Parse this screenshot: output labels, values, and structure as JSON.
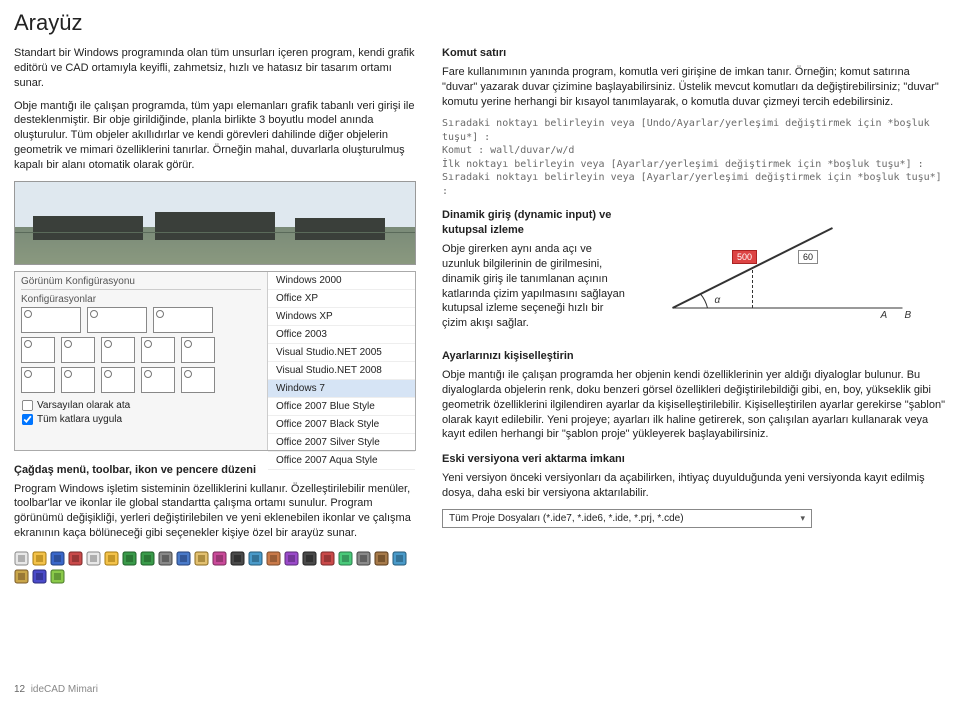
{
  "title": "Arayüz",
  "intro1": "Standart bir Windows programında olan tüm unsurları içeren program, kendi grafik editörü ve CAD ortamıyla keyifli, zahmetsiz, hızlı ve hatasız bir tasarım ortamı sunar.",
  "intro2": "Obje mantığı ile çalışan programda, tüm yapı elemanları grafik tabanlı veri girişi ile desteklenmiştir. Bir obje girildiğinde, planla birlikte 3 boyutlu model anında oluşturulur. Tüm objeler akıllıdırlar ve kendi görevleri dahilinde diğer objelerin geometrik ve mimari özelliklerini tanırlar. Örneğin mahal, duvarlarla oluşturulmuş kapalı bir alanı otomatik olarak görür.",
  "theme": {
    "header_left": "Görünüm Konfigürasyonu",
    "konf_label": "Konfigürasyonlar",
    "opt1": "Varsayılan olarak ata",
    "opt2": "Tüm katlara uygula",
    "opt2_checked": true,
    "items": [
      "Windows 2000",
      "Office XP",
      "Windows XP",
      "Office 2003",
      "Visual Studio.NET 2005",
      "Visual Studio.NET 2008",
      "Windows 7",
      "Office 2007 Blue Style",
      "Office 2007 Black Style",
      "Office 2007 Silver Style",
      "Office 2007 Aqua Style"
    ],
    "selected_index": 6
  },
  "menu_head": "Çağdaş menü, toolbar, ikon ve pencere düzeni",
  "menu_body": "Program Windows işletim sisteminin özelliklerini kullanır. Özelleştirilebilir menüler, toolbar'lar ve ikonlar ile global standartta çalışma ortamı sunulur. Program görünümü değişikliği, yerleri değiştirilebilen ve yeni eklenebilen ikonlar ve çalışma ekranının kaça bölüneceği gibi seçenekler kişiye özel bir arayüz sunar.",
  "komut_head": "Komut satırı",
  "komut_body": "Fare kullanımının yanında program, komutla veri girişine de imkan tanır. Örneğin; komut satırına \"duvar\" yazarak duvar çizimine başlayabilirsiniz. Üstelik mevcut komutları da değiştirebilirsiniz; \"duvar\" komutu yerine herhangi bir kısayol tanımlayarak, o komutla duvar çizmeyi tercih edebilirsiniz.",
  "code_lines": [
    "Sıradaki noktayı belirleyin veya [Undo/Ayarlar/yerleşimi değiştirmek için *boşluk tuşu*] :",
    "Komut : wall/duvar/w/d",
    "İlk noktayı belirleyin veya [Ayarlar/yerleşimi değiştirmek için *boşluk tuşu*] :",
    "Sıradaki noktayı belirleyin veya [Ayarlar/yerleşimi değiştirmek için *boşluk tuşu*] :"
  ],
  "dyn_head": "Dinamik giriş (dynamic input) ve kutupsal izleme",
  "dyn_body": "Obje girerken aynı anda açı ve uzunluk bilgilerinin de girilmesini, dinamik giriş ile tanımlanan açının katlarında çizim yapılmasını sağlayan kutupsal izleme seçeneği hızlı bir çizim akışı sağlar.",
  "dyn_fig": {
    "val_a": "500",
    "val_b": "60",
    "lbl_a": "A",
    "lbl_b": "B",
    "ang": "α",
    "line_color": "#333333",
    "accent": "#d04040"
  },
  "ayar_head": "Ayarlarınızı kişiselleştirin",
  "ayar_body": "Obje mantığı ile çalışan programda her objenin kendi özelliklerinin yer aldığı diyaloglar bulunur. Bu diyaloglarda objelerin renk, doku benzeri görsel özellikleri değiştirilebildiği gibi, en, boy, yükseklik gibi geometrik özelliklerini ilgilendiren ayarlar da kişiselleştirilebilir. Kişiselleştirilen ayarlar gerekirse \"şablon\" olarak kayıt edilebilir. Yeni projeye; ayarları ilk haline getirerek, son çalışılan ayarları kullanarak veya kayıt edilen herhangi bir \"şablon proje\" yükleyerek başlayabilirsiniz.",
  "eski_head": "Eski versiyona veri aktarma imkanı",
  "eski_body": "Yeni versiyon önceki versiyonları da açabilirken, ihtiyaç duyulduğunda  yeni versiyonda kayıt edilmiş dosya, daha eski bir versiyona aktarılabilir.",
  "filetype": "Tüm Proje Dosyaları (*.ide7, *.ide6, *.ide, *.prj, *.cde)",
  "icons": [
    {
      "name": "new-icon",
      "c1": "#e8e8e8",
      "c2": "#888"
    },
    {
      "name": "open-icon",
      "c1": "#f3c24a",
      "c2": "#a67a10"
    },
    {
      "name": "save-icon",
      "c1": "#3a67c9",
      "c2": "#23407d"
    },
    {
      "name": "cut-icon",
      "c1": "#c94a4a",
      "c2": "#7a2a2a"
    },
    {
      "name": "copy-icon",
      "c1": "#e8e8e8",
      "c2": "#888"
    },
    {
      "name": "paste-icon",
      "c1": "#f3c24a",
      "c2": "#a67a10"
    },
    {
      "name": "undo-icon",
      "c1": "#3a9a4a",
      "c2": "#1f6028"
    },
    {
      "name": "redo-icon",
      "c1": "#3a9a4a",
      "c2": "#1f6028"
    },
    {
      "name": "print-icon",
      "c1": "#888",
      "c2": "#444"
    },
    {
      "name": "zoom-icon",
      "c1": "#4a7ac9",
      "c2": "#244078"
    },
    {
      "name": "pan-icon",
      "c1": "#e2c070",
      "c2": "#8a6a20"
    },
    {
      "name": "layer-icon",
      "c1": "#c94a9a",
      "c2": "#7a2a5a"
    },
    {
      "name": "line-icon",
      "c1": "#4a4a4a",
      "c2": "#222"
    },
    {
      "name": "rect-icon",
      "c1": "#4a9ac9",
      "c2": "#245a78"
    },
    {
      "name": "circle-icon",
      "c1": "#c97a4a",
      "c2": "#7a4a2a"
    },
    {
      "name": "arc-icon",
      "c1": "#9a4ac9",
      "c2": "#5a2a78"
    },
    {
      "name": "text-icon",
      "c1": "#4a4a4a",
      "c2": "#222"
    },
    {
      "name": "dim-icon",
      "c1": "#c94a4a",
      "c2": "#7a2a2a"
    },
    {
      "name": "hatch-icon",
      "c1": "#4ac97a",
      "c2": "#2a7a4a"
    },
    {
      "name": "wall-icon",
      "c1": "#8a8a8a",
      "c2": "#444"
    },
    {
      "name": "door-icon",
      "c1": "#a67a4a",
      "c2": "#5a3a1a"
    },
    {
      "name": "window-icon",
      "c1": "#4a9ac9",
      "c2": "#245a78"
    },
    {
      "name": "col-icon",
      "c1": "#c9a64a",
      "c2": "#7a5a2a"
    },
    {
      "name": "beam-icon",
      "c1": "#4a4ac9",
      "c2": "#2a2a7a"
    },
    {
      "name": "slab-icon",
      "c1": "#8ac94a",
      "c2": "#4a7a2a"
    }
  ],
  "footer_page": "12",
  "footer_product": "ideCAD Mimari"
}
